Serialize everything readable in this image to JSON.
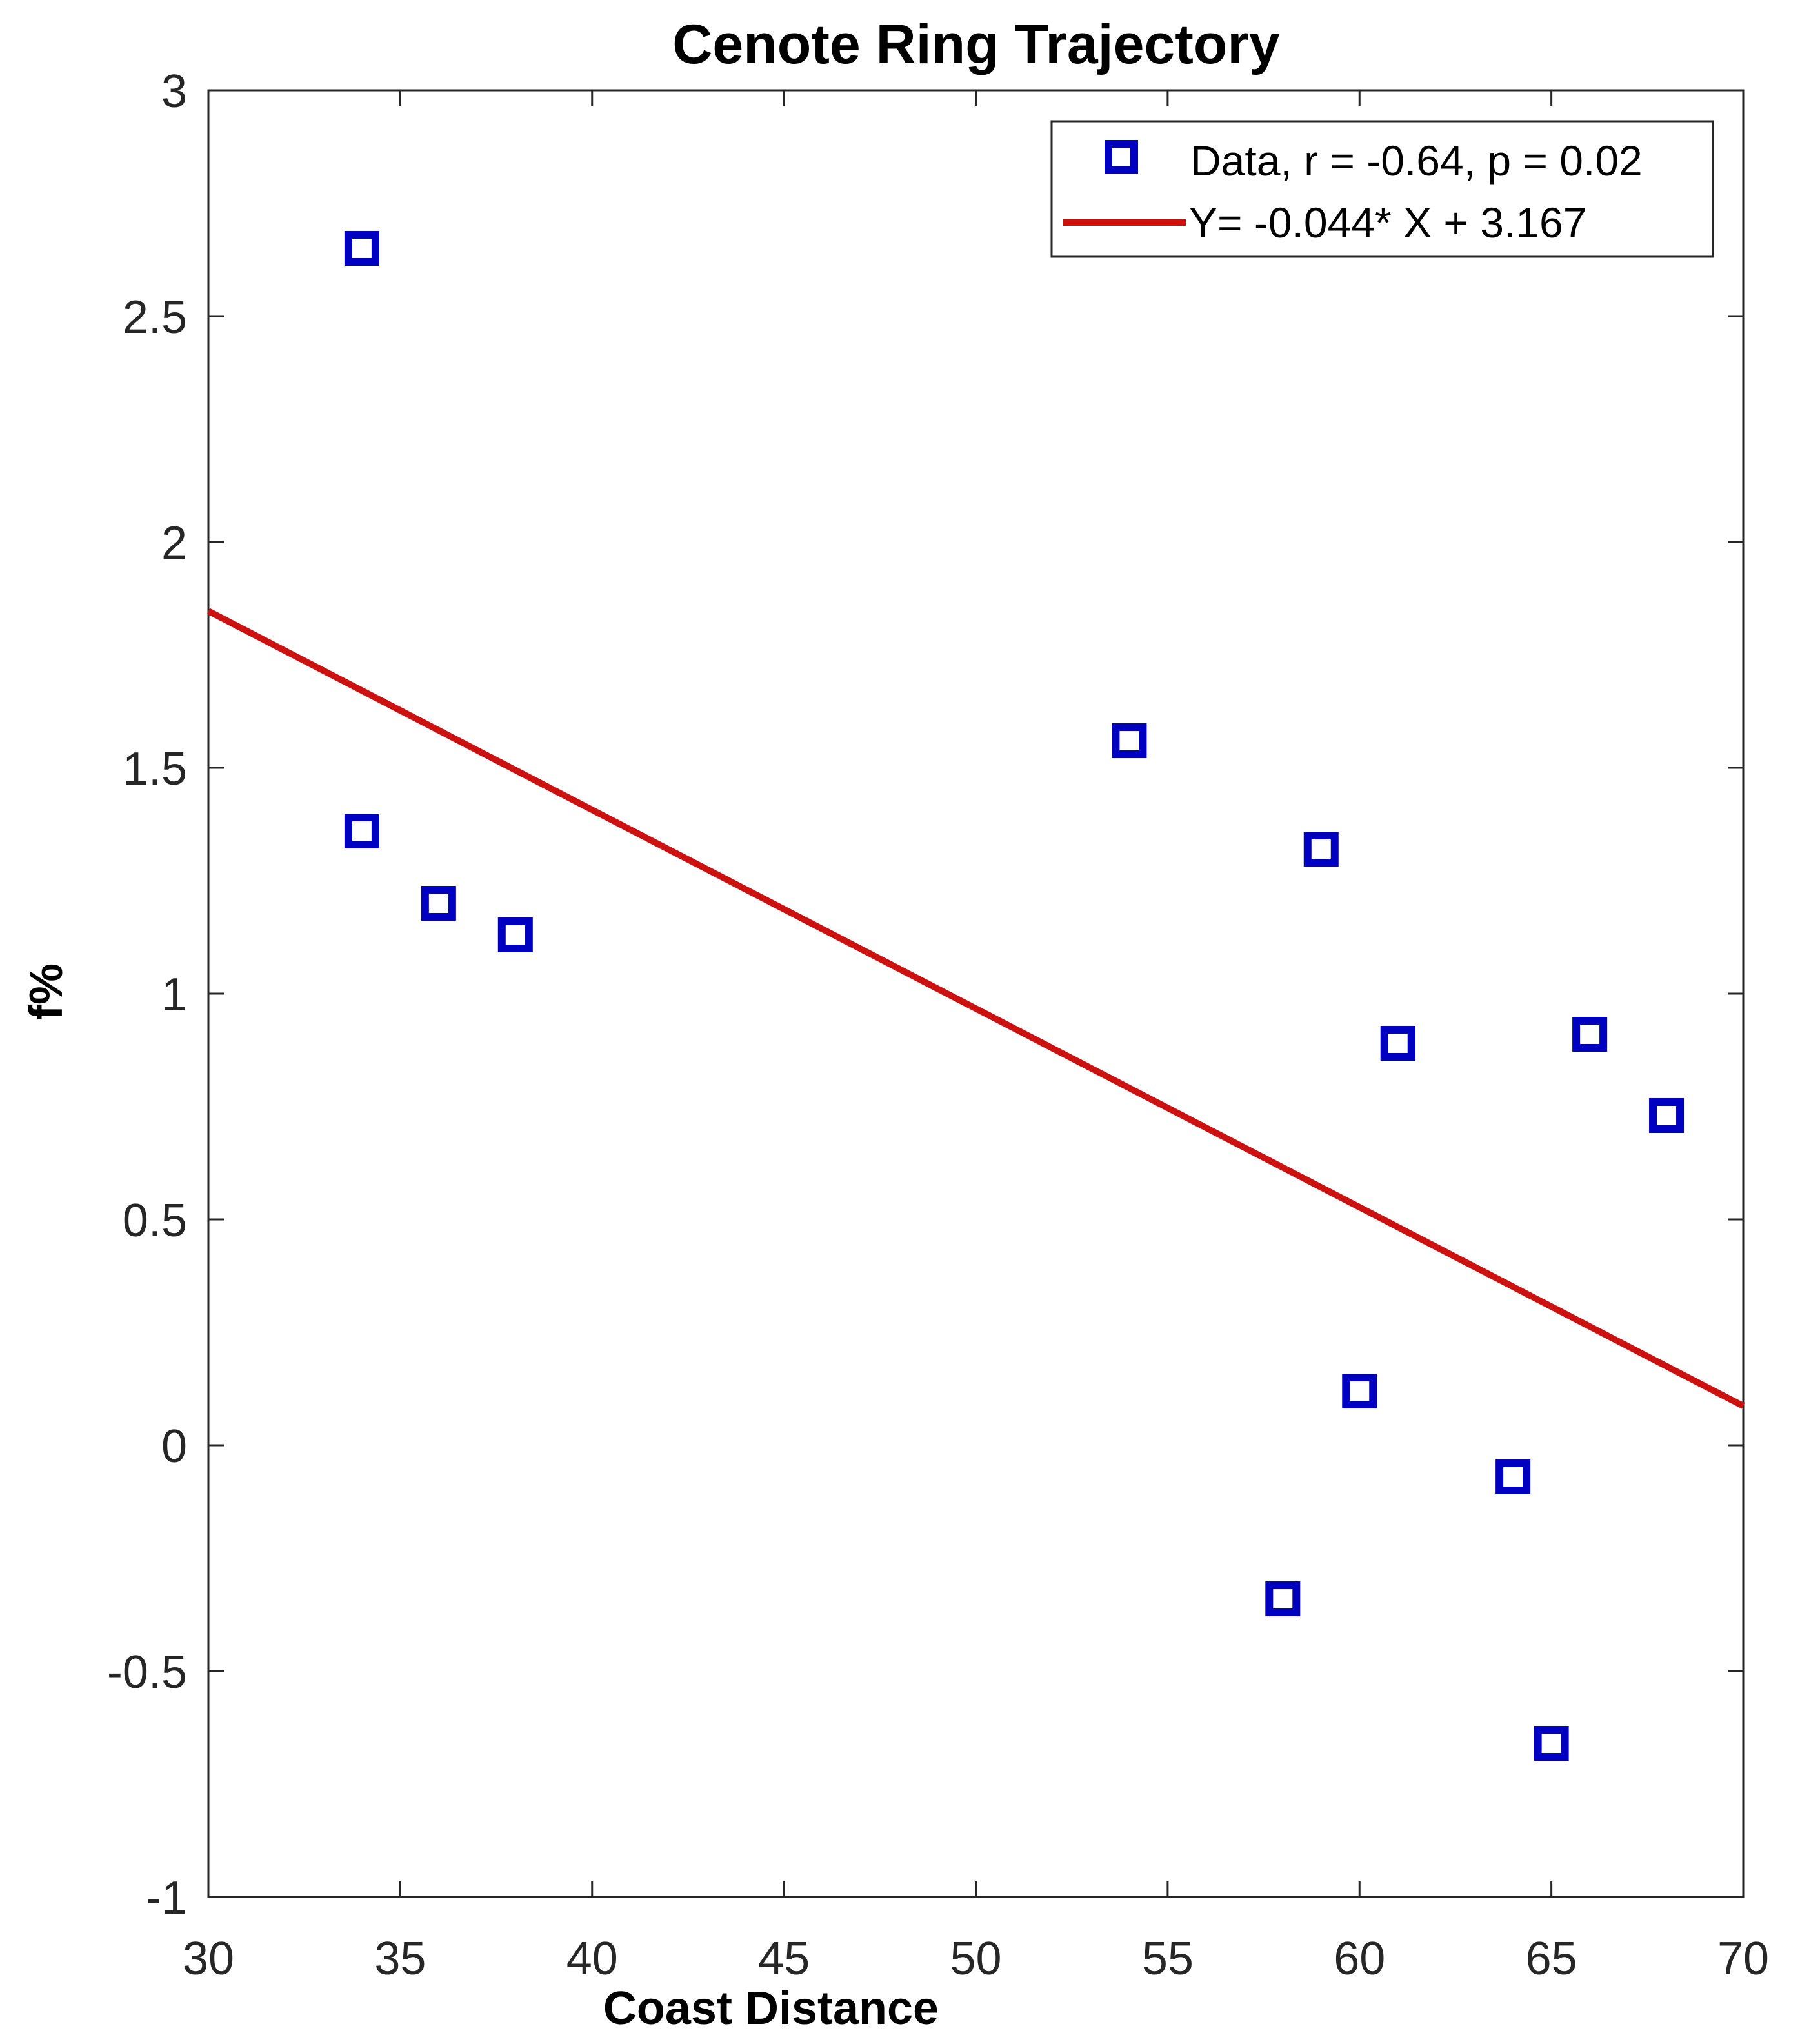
{
  "chart_data": {
    "type": "scatter",
    "title": "Cenote Ring Trajectory",
    "xlabel": "Coast Distance",
    "ylabel": "f%",
    "xlim": [
      30,
      70
    ],
    "ylim": [
      -1,
      3
    ],
    "x_ticks": [
      "30",
      "35",
      "40",
      "45",
      "50",
      "55",
      "60",
      "65",
      "70"
    ],
    "y_ticks": [
      "-1",
      "-0.5",
      "0",
      "0.5",
      "1",
      "1.5",
      "2",
      "2.5",
      "3"
    ],
    "grid": false,
    "legend_position": "top-right",
    "series": [
      {
        "name": "Data, r = -0.64, p = 0.02",
        "type": "scatter",
        "marker": "square",
        "color": "#0000c0",
        "points": [
          {
            "x": 34,
            "y": 2.65
          },
          {
            "x": 34,
            "y": 1.36
          },
          {
            "x": 36,
            "y": 1.2
          },
          {
            "x": 38,
            "y": 1.13
          },
          {
            "x": 54,
            "y": 1.56
          },
          {
            "x": 58,
            "y": -0.34
          },
          {
            "x": 59,
            "y": 1.32
          },
          {
            "x": 60,
            "y": 0.12
          },
          {
            "x": 61,
            "y": 0.89
          },
          {
            "x": 64,
            "y": -0.07
          },
          {
            "x": 65,
            "y": -0.66
          },
          {
            "x": 66,
            "y": 0.91
          },
          {
            "x": 68,
            "y": 0.73
          }
        ]
      },
      {
        "name": "Y= -0.044* X + 3.167",
        "type": "line",
        "color": "#cc1111",
        "slope": -0.044,
        "intercept": 3.167,
        "x_range": [
          30,
          70
        ]
      }
    ]
  }
}
